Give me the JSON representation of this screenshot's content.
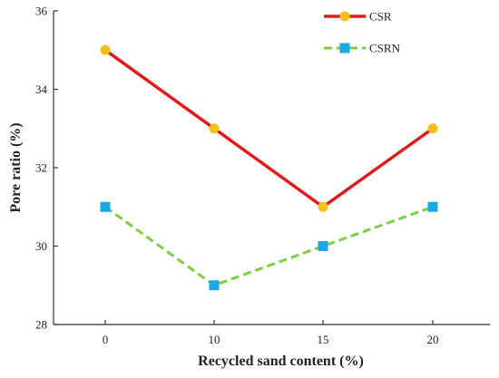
{
  "chart_data": {
    "type": "line",
    "title": "",
    "xlabel": "Recycled sand content (%)",
    "ylabel": "Pore ratio (%)",
    "x": [
      0,
      10,
      15,
      20
    ],
    "xticks": [
      "0",
      "10",
      "15",
      "20"
    ],
    "ylim": [
      28,
      36
    ],
    "yticks": [
      28,
      30,
      32,
      34,
      36
    ],
    "grid": false,
    "legend_position": "top-right",
    "series": [
      {
        "name": "CSR",
        "values": [
          35,
          33,
          31,
          33
        ],
        "line_color": "#e31a1c",
        "line_style": "solid",
        "marker": "circle",
        "marker_color": "#f5c016"
      },
      {
        "name": "CSRN",
        "values": [
          31,
          29,
          30,
          31
        ],
        "line_color": "#7ccf3f",
        "line_style": "dashed",
        "marker": "square",
        "marker_color": "#1aa9e6"
      }
    ]
  }
}
